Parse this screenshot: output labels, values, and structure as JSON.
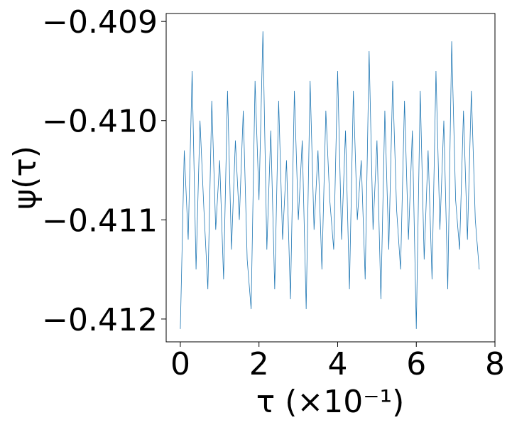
{
  "chart_data": {
    "type": "line",
    "xlabel": "τ (×10⁻¹)",
    "ylabel": "ψ(τ)",
    "x": [
      0,
      0.1,
      0.2,
      0.3,
      0.4,
      0.5,
      0.6,
      0.7,
      0.8,
      0.9,
      1.0,
      1.1,
      1.2,
      1.3,
      1.4,
      1.5,
      1.6,
      1.7,
      1.8,
      1.9,
      2.0,
      2.1,
      2.2,
      2.3,
      2.4,
      2.5,
      2.6,
      2.7,
      2.8,
      2.9,
      3.0,
      3.1,
      3.2,
      3.3,
      3.4,
      3.5,
      3.6,
      3.7,
      3.8,
      3.9,
      4.0,
      4.1,
      4.2,
      4.3,
      4.4,
      4.5,
      4.6,
      4.7,
      4.8,
      4.9,
      5.0,
      5.1,
      5.2,
      5.3,
      5.4,
      5.5,
      5.6,
      5.7,
      5.8,
      5.9,
      6.0,
      6.1,
      6.2,
      6.3,
      6.4,
      6.5,
      6.6,
      6.7,
      6.8,
      6.9,
      7.0,
      7.1,
      7.2,
      7.3,
      7.4,
      7.5,
      7.6
    ],
    "series": [
      {
        "color": "#1f77b4",
        "values": [
          -0.4121,
          -0.4103,
          -0.4112,
          -0.4095,
          -0.4115,
          -0.41,
          -0.4109,
          -0.4117,
          -0.4098,
          -0.4111,
          -0.4104,
          -0.4116,
          -0.4097,
          -0.4113,
          -0.4102,
          -0.411,
          -0.4099,
          -0.4114,
          -0.4119,
          -0.4096,
          -0.4108,
          -0.4091,
          -0.4113,
          -0.4101,
          -0.4117,
          -0.4098,
          -0.4112,
          -0.4104,
          -0.4118,
          -0.4097,
          -0.411,
          -0.4102,
          -0.4119,
          -0.4096,
          -0.4111,
          -0.4103,
          -0.4115,
          -0.4099,
          -0.4108,
          -0.4113,
          -0.4095,
          -0.4112,
          -0.4101,
          -0.4117,
          -0.4097,
          -0.411,
          -0.4104,
          -0.4116,
          -0.4093,
          -0.4111,
          -0.4102,
          -0.4118,
          -0.4099,
          -0.4113,
          -0.4096,
          -0.4109,
          -0.4115,
          -0.4098,
          -0.4112,
          -0.4101,
          -0.4121,
          -0.4097,
          -0.4114,
          -0.4103,
          -0.4116,
          -0.4095,
          -0.4111,
          -0.41,
          -0.4117,
          -0.4092,
          -0.4108,
          -0.4113,
          -0.4099,
          -0.4112,
          -0.4097,
          -0.411,
          -0.4115
        ]
      }
    ],
    "xlim": [
      -0.36,
      8.0
    ],
    "xticks": [
      0,
      2,
      4,
      6,
      8
    ],
    "ylim": [
      -0.41223,
      -0.40892
    ],
    "yticks": [
      {
        "value": -0.409,
        "label": "−0.409"
      },
      {
        "value": -0.41,
        "label": "−0.410"
      },
      {
        "value": -0.411,
        "label": "−0.411"
      },
      {
        "value": -0.412,
        "label": "−0.412"
      }
    ]
  }
}
